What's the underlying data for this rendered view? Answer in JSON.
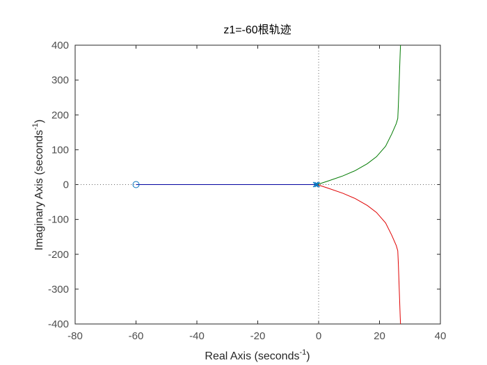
{
  "chart_data": {
    "type": "line",
    "title": "z1=-60根轨迹",
    "xlabel": "Real Axis (seconds",
    "ylabel": "Imaginary Axis (seconds",
    "axis_unit_exponent": "-1",
    "axis_label_suffix": ")",
    "xlim": [
      -80,
      40
    ],
    "ylim": [
      -400,
      400
    ],
    "xticks": [
      -80,
      -60,
      -40,
      -20,
      0,
      20,
      40
    ],
    "yticks": [
      -400,
      -300,
      -200,
      -100,
      0,
      100,
      200,
      300,
      400
    ],
    "grid": false,
    "reference_lines": {
      "x": 0,
      "y": 0,
      "style": "dotted"
    },
    "zeros": [
      {
        "x": -60,
        "y": 0
      }
    ],
    "poles": [
      {
        "x": -1,
        "y": 0
      },
      {
        "x": -0.5,
        "y": 0
      }
    ],
    "series": [
      {
        "color": "#0000a0",
        "x": [
          -1,
          -60
        ],
        "y": [
          0,
          0
        ]
      },
      {
        "color": "#007a00",
        "x": [
          -0.5,
          3,
          8,
          12,
          16,
          19,
          22,
          24,
          25.5,
          26,
          26.2,
          26.4,
          26.6,
          26.8,
          26.9
        ],
        "y": [
          0,
          10,
          25,
          40,
          60,
          80,
          110,
          145,
          175,
          190,
          230,
          280,
          330,
          380,
          400
        ]
      },
      {
        "color": "#e00000",
        "x": [
          -0.5,
          3,
          8,
          12,
          16,
          19,
          22,
          24,
          25.5,
          26,
          26.2,
          26.4,
          26.6,
          26.8,
          26.9
        ],
        "y": [
          0,
          -10,
          -25,
          -40,
          -60,
          -80,
          -110,
          -145,
          -175,
          -190,
          -230,
          -280,
          -330,
          -380,
          -400
        ]
      }
    ]
  },
  "colors": {
    "axes": "#262626",
    "tick_text": "#4d4d4d",
    "marker": "#0072bd",
    "reference": "#666666"
  }
}
